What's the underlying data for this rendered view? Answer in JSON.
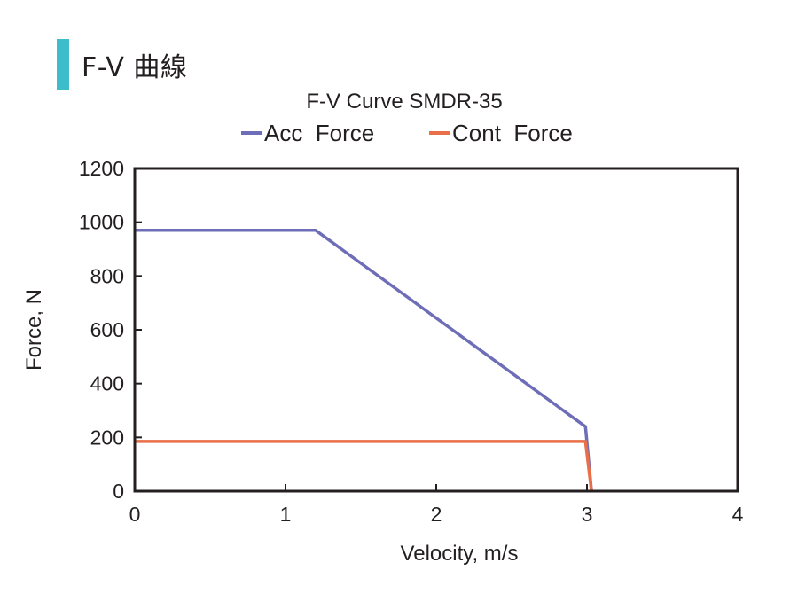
{
  "header": {
    "title": "F-V 曲線",
    "accent_color": "#3dbdc9"
  },
  "chart_data": {
    "type": "line",
    "title": "F-V Curve SMDR-35",
    "xlabel": "Velocity, m/s",
    "ylabel": "Force, N",
    "xlim": [
      0,
      4
    ],
    "ylim": [
      0,
      1200
    ],
    "x_ticks": [
      "0",
      "1",
      "2",
      "3",
      "4"
    ],
    "y_ticks": [
      "0",
      "200",
      "400",
      "600",
      "800",
      "1000",
      "1200"
    ],
    "legend_position": "top-center",
    "grid": false,
    "series": [
      {
        "name": "Acc  Force",
        "color": "#6e6eb8",
        "points": [
          [
            0,
            970
          ],
          [
            1.2,
            970
          ],
          [
            2.99,
            240
          ],
          [
            3.03,
            0
          ]
        ]
      },
      {
        "name": "Cont  Force",
        "color": "#e86f47",
        "points": [
          [
            0,
            185
          ],
          [
            2.99,
            185
          ],
          [
            3.03,
            0
          ]
        ]
      }
    ]
  }
}
